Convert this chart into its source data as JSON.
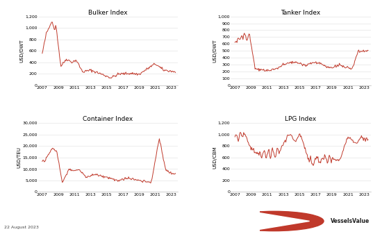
{
  "title": "VesselsValue",
  "date_label": "22 August 2023",
  "line_color": "#c0392b",
  "line_width": 0.7,
  "background_color": "#ffffff",
  "grid_color": "#dddddd",
  "subplots": [
    {
      "title": "Bulker Index",
      "ylabel": "USD/DWT",
      "ylim": [
        0,
        1200
      ],
      "yticks": [
        0,
        200,
        400,
        600,
        800,
        1000,
        1200
      ],
      "xlim": [
        2006.5,
        2023.8
      ],
      "xticks": [
        2007,
        2009,
        2011,
        2013,
        2015,
        2017,
        2019,
        2021,
        2023
      ]
    },
    {
      "title": "Tanker Index",
      "ylabel": "USD/DWT",
      "ylim": [
        0,
        1000
      ],
      "yticks": [
        0,
        100,
        200,
        300,
        400,
        500,
        600,
        700,
        800,
        900,
        1000
      ],
      "xlim": [
        2006.5,
        2023.8
      ],
      "xticks": [
        2007,
        2009,
        2011,
        2013,
        2015,
        2017,
        2019,
        2021,
        2023
      ]
    },
    {
      "title": "Container Index",
      "ylabel": "USD/TEU",
      "ylim": [
        0,
        30000
      ],
      "yticks": [
        0,
        5000,
        10000,
        15000,
        20000,
        25000,
        30000
      ],
      "xlim": [
        2006.5,
        2023.8
      ],
      "xticks": [
        2007,
        2009,
        2011,
        2013,
        2015,
        2017,
        2019,
        2021,
        2023
      ]
    },
    {
      "title": "LPG Index",
      "ylabel": "USD/CBM",
      "ylim": [
        0,
        1200
      ],
      "yticks": [
        0,
        200,
        400,
        600,
        800,
        1000,
        1200
      ],
      "xlim": [
        2006.5,
        2023.8
      ],
      "xticks": [
        2007,
        2009,
        2011,
        2013,
        2015,
        2017,
        2019,
        2021,
        2023
      ]
    }
  ]
}
